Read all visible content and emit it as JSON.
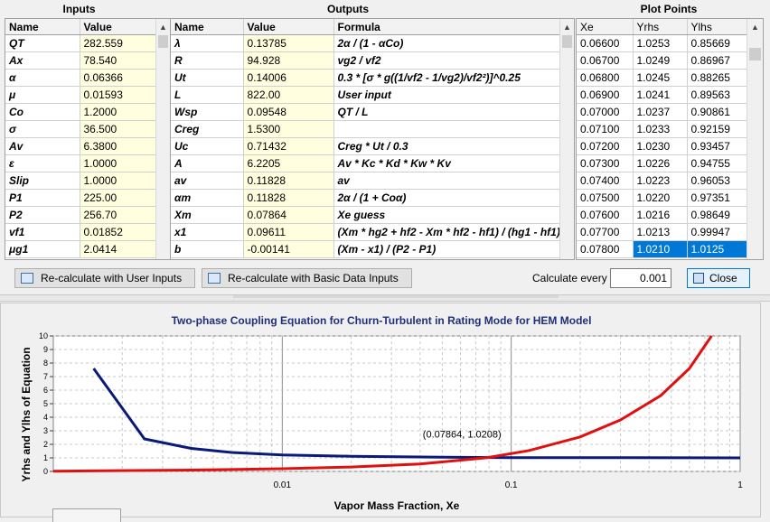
{
  "headers": {
    "inputs": "Inputs",
    "outputs": "Outputs",
    "plot_points": "Plot Points"
  },
  "inputs": {
    "col_name": "Name",
    "col_value": "Value",
    "rows": [
      {
        "name": "QT",
        "value": "282.559"
      },
      {
        "name": "Ax",
        "value": "78.540"
      },
      {
        "name": "α",
        "value": "0.06366"
      },
      {
        "name": "μ",
        "value": "0.01593"
      },
      {
        "name": "Co",
        "value": "1.2000"
      },
      {
        "name": "σ",
        "value": "36.500"
      },
      {
        "name": "Av",
        "value": "6.3800"
      },
      {
        "name": "ε",
        "value": "1.0000"
      },
      {
        "name": "Slip",
        "value": "1.0000"
      },
      {
        "name": "P1",
        "value": "225.00"
      },
      {
        "name": "P2",
        "value": "256.70"
      },
      {
        "name": "vf1",
        "value": "0.01852"
      },
      {
        "name": "μg1",
        "value": "2.0414"
      }
    ]
  },
  "outputs": {
    "col_name": "Name",
    "col_value": "Value",
    "col_formula": "Formula",
    "rows": [
      {
        "name": "λ",
        "value": "0.13785",
        "formula": "2α / (1 - αCo)"
      },
      {
        "name": "R",
        "value": "94.928",
        "formula": "vg2 / vf2"
      },
      {
        "name": "Ut",
        "value": "0.14006",
        "formula": "0.3 * [σ * g((1/vf2 - 1/vg2)/vf2²)]^0.25"
      },
      {
        "name": "L",
        "value": "822.00",
        "formula": "User input"
      },
      {
        "name": "Wsp",
        "value": "0.09548",
        "formula": "QT / L"
      },
      {
        "name": "Creg",
        "value": "1.5300",
        "formula": ""
      },
      {
        "name": "Uc",
        "value": "0.71432",
        "formula": "Creg * Ut / 0.3"
      },
      {
        "name": "A",
        "value": "6.2205",
        "formula": "Av * Kc * Kd * Kw * Kv"
      },
      {
        "name": "av",
        "value": "0.11828",
        "formula": "av"
      },
      {
        "name": "αm",
        "value": "0.11828",
        "formula": "2α / (1 + Coα)"
      },
      {
        "name": "Xm",
        "value": "0.07864",
        "formula": "Xe guess"
      },
      {
        "name": "x1",
        "value": "0.09611",
        "formula": "(Xm * hg2 + hf2 - Xm * hf2 - hf1) / (hg1 - hf1)"
      },
      {
        "name": "b",
        "value": "-0.00141",
        "formula": "(Xm - x1) / (P2 - P1)"
      }
    ]
  },
  "plot_points": {
    "col_xe": "Xe",
    "col_yrhs": "Yrhs",
    "col_ylhs": "Ylhs",
    "rows": [
      {
        "xe": "0.06600",
        "yrhs": "1.0253",
        "ylhs": "0.85669"
      },
      {
        "xe": "0.06700",
        "yrhs": "1.0249",
        "ylhs": "0.86967"
      },
      {
        "xe": "0.06800",
        "yrhs": "1.0245",
        "ylhs": "0.88265"
      },
      {
        "xe": "0.06900",
        "yrhs": "1.0241",
        "ylhs": "0.89563"
      },
      {
        "xe": "0.07000",
        "yrhs": "1.0237",
        "ylhs": "0.90861"
      },
      {
        "xe": "0.07100",
        "yrhs": "1.0233",
        "ylhs": "0.92159"
      },
      {
        "xe": "0.07200",
        "yrhs": "1.0230",
        "ylhs": "0.93457"
      },
      {
        "xe": "0.07300",
        "yrhs": "1.0226",
        "ylhs": "0.94755"
      },
      {
        "xe": "0.07400",
        "yrhs": "1.0223",
        "ylhs": "0.96053"
      },
      {
        "xe": "0.07500",
        "yrhs": "1.0220",
        "ylhs": "0.97351"
      },
      {
        "xe": "0.07600",
        "yrhs": "1.0216",
        "ylhs": "0.98649"
      },
      {
        "xe": "0.07700",
        "yrhs": "1.0213",
        "ylhs": "0.99947"
      },
      {
        "xe": "0.07800",
        "yrhs": "1.0210",
        "ylhs": "1.0125"
      }
    ],
    "selected_index": 12
  },
  "buttons": {
    "recalc_user": "Re-calculate with User Inputs",
    "recalc_basic": "Re-calculate with Basic Data Inputs",
    "calc_every_label": "Calculate every",
    "calc_every_value": "0.001",
    "close": "Close"
  },
  "colors": {
    "yrhs": "#0a1a7a",
    "ylhs": "#e01010",
    "selection": "#0078d7",
    "title": "#1f2f7a",
    "value_bg": "#ffffe0"
  },
  "chart_data": {
    "type": "line",
    "title": "Two-phase Coupling Equation for Churn-Turbulent in Rating Mode for HEM Model",
    "xlabel": "Vapor Mass Fraction, Xe",
    "ylabel": "Yrhs and Ylhs of Equation",
    "xscale": "log",
    "xlim": [
      0.001,
      1
    ],
    "ylim": [
      0,
      10
    ],
    "xticks": [
      {
        "v": 0.01,
        "label": "0.01"
      },
      {
        "v": 0.1,
        "label": "0.1"
      },
      {
        "v": 1,
        "label": "1"
      }
    ],
    "yticks": [
      0,
      1,
      2,
      3,
      4,
      5,
      6,
      7,
      8,
      9,
      10
    ],
    "grid": true,
    "annotation": {
      "text": "(0.07864, 1.0208)",
      "x": 0.07864,
      "y": 1.0208
    },
    "series": [
      {
        "key": "yrhs",
        "x": [
          0.0015,
          0.0025,
          0.004,
          0.006,
          0.01,
          0.02,
          0.05,
          0.1,
          0.3,
          1.0
        ],
        "y": [
          7.6,
          2.4,
          1.7,
          1.4,
          1.22,
          1.12,
          1.05,
          1.02,
          1.01,
          1.0
        ]
      },
      {
        "key": "ylhs",
        "x": [
          0.001,
          0.004,
          0.01,
          0.02,
          0.04,
          0.0786,
          0.12,
          0.2,
          0.3,
          0.45,
          0.6,
          0.75
        ],
        "y": [
          0.02,
          0.1,
          0.2,
          0.33,
          0.55,
          1.0208,
          1.55,
          2.55,
          3.8,
          5.6,
          7.6,
          10.0
        ]
      }
    ]
  }
}
